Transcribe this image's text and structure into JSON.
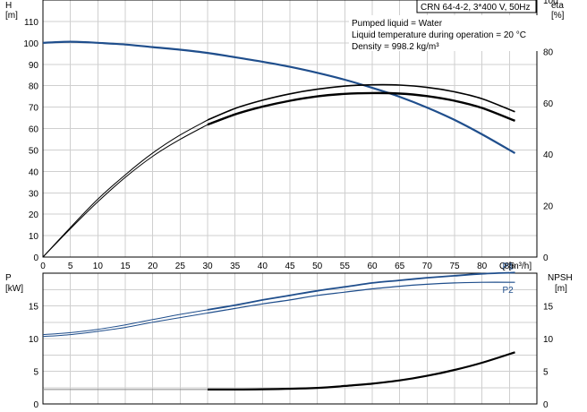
{
  "title_box": "CRN 64-4-2, 3*400 V, 50Hz",
  "notes": [
    "Pumped liquid = Water",
    "Liquid temperature during operation = 20 °C",
    "Density = 998.2 kg/m³"
  ],
  "colors": {
    "head_curve": "#1f4e8c",
    "power_curve": "#1f4e8c",
    "efficiency_curve": "#000000",
    "npsh_curve": "#000000",
    "grid": "#cfcfcf"
  },
  "chart_data": [
    {
      "type": "line",
      "panel": "top",
      "xlabel": "Q [m³/h]",
      "ylabel": "H\n[m]",
      "y2label": "eta\n[%]",
      "xlim": [
        0,
        90
      ],
      "xticks": [
        0,
        5,
        10,
        15,
        20,
        25,
        30,
        35,
        40,
        45,
        50,
        55,
        60,
        65,
        70,
        75,
        80,
        85
      ],
      "ylim": [
        0,
        120
      ],
      "yticks": [
        0,
        10,
        20,
        30,
        40,
        50,
        60,
        70,
        80,
        90,
        100,
        110
      ],
      "y2lim": [
        0,
        100
      ],
      "y2ticks": [
        0,
        20,
        40,
        60,
        80,
        100
      ],
      "y2tick_labels": [
        "0",
        "20",
        "40",
        "60",
        "80",
        "100"
      ],
      "grid": true,
      "series": [
        {
          "key": "head",
          "axis": "y",
          "color": "#1f4e8c",
          "x": [
            0,
            5,
            10,
            15,
            20,
            25,
            30,
            35,
            40,
            45,
            50,
            55,
            60,
            65,
            70,
            75,
            80,
            86
          ],
          "y": [
            100,
            100.5,
            100,
            99.2,
            98,
            96.8,
            95.3,
            93.3,
            91.2,
            88.8,
            86,
            82.8,
            79,
            74.8,
            69.8,
            64,
            57.3,
            48.5
          ]
        },
        {
          "key": "eta_curve_a",
          "axis": "y2",
          "color": "#000000",
          "x": [
            0,
            5,
            10,
            15,
            20,
            25,
            30,
            35,
            40,
            45,
            50,
            55,
            60,
            65,
            70,
            75,
            80,
            86
          ],
          "y": [
            0,
            11.5,
            22.5,
            32,
            40.5,
            47.5,
            53.3,
            57.8,
            61,
            63.5,
            65.3,
            66.5,
            67,
            66.9,
            66,
            64.3,
            61.6,
            56.5
          ]
        },
        {
          "key": "eta_curve_b",
          "axis": "y2",
          "color": "#000000",
          "x": [
            0,
            5,
            10,
            15,
            20,
            25,
            30,
            35,
            40,
            45,
            50,
            55,
            60,
            65,
            70,
            75,
            80,
            86
          ],
          "y": [
            0,
            11,
            21.5,
            31,
            39.2,
            45.8,
            51.5,
            55.5,
            58.5,
            60.8,
            62.5,
            63.5,
            63.8,
            63.6,
            62.6,
            60.8,
            58,
            53
          ]
        }
      ]
    },
    {
      "type": "line",
      "panel": "bottom",
      "ylabel": "P\n[kW]",
      "y2label": "NPSH\n[m]",
      "xlim": [
        0,
        90
      ],
      "ylim": [
        0,
        20
      ],
      "yticks": [
        0,
        5,
        10,
        15
      ],
      "y2lim": [
        0,
        20
      ],
      "y2ticks": [
        0,
        5,
        10,
        15
      ],
      "grid": true,
      "series": [
        {
          "name": "P1",
          "axis": "y",
          "color": "#1f4e8c",
          "x": [
            0,
            5,
            10,
            15,
            20,
            25,
            30,
            35,
            40,
            45,
            50,
            55,
            60,
            65,
            70,
            75,
            80,
            86
          ],
          "y": [
            10.6,
            10.9,
            11.4,
            12.1,
            12.9,
            13.7,
            14.4,
            15.1,
            15.9,
            16.6,
            17.3,
            17.9,
            18.5,
            18.9,
            19.3,
            19.6,
            19.9,
            20.1
          ]
        },
        {
          "name": "P2",
          "axis": "y",
          "color": "#1f4e8c",
          "x": [
            0,
            5,
            10,
            15,
            20,
            25,
            30,
            35,
            40,
            45,
            50,
            55,
            60,
            65,
            70,
            75,
            80,
            86
          ],
          "y": [
            10.3,
            10.6,
            11.1,
            11.7,
            12.5,
            13.2,
            13.9,
            14.6,
            15.3,
            15.9,
            16.6,
            17.1,
            17.6,
            18,
            18.3,
            18.5,
            18.6,
            18.6
          ]
        },
        {
          "key": "npsh",
          "axis": "y2",
          "color": "#000000",
          "x": [
            0,
            30,
            40,
            50,
            55,
            60,
            65,
            70,
            75,
            80,
            86
          ],
          "y": [
            2.2,
            2.2,
            2.25,
            2.45,
            2.75,
            3.1,
            3.6,
            4.3,
            5.2,
            6.3,
            7.9
          ]
        }
      ]
    }
  ]
}
